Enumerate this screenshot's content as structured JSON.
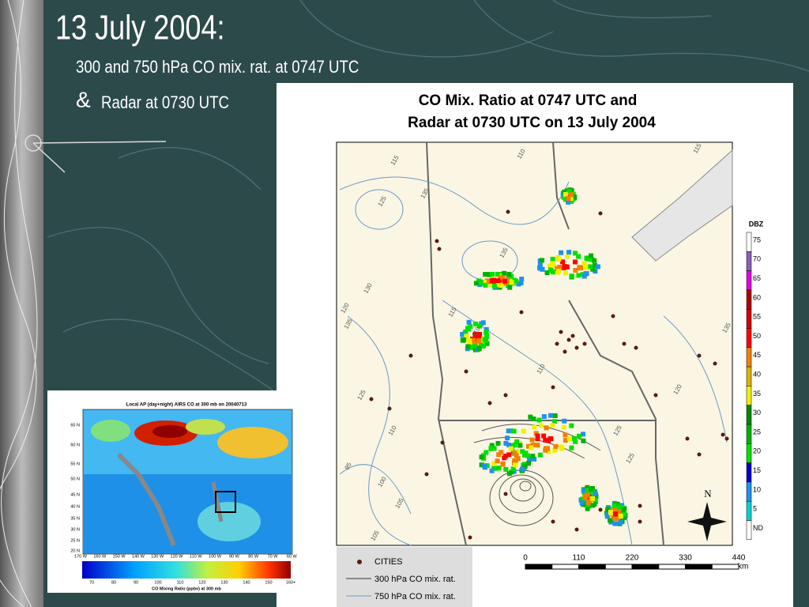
{
  "slide": {
    "title": "13 July 2004:",
    "subtitle": "300 and 750 hPa CO mix. rat. at 0747 UTC",
    "amp": "&",
    "subtitle2": "Radar at 0730 UTC"
  },
  "main_map": {
    "title_line1": "CO Mix. Ratio at 0747 UTC and",
    "title_line2": "Radar at 0730 UTC on 13 July 2004",
    "contour_labels": [
      "115",
      "125",
      "135",
      "110",
      "115",
      "130",
      "135",
      "120",
      "135",
      "115",
      "110",
      "120",
      "125",
      "110",
      "95",
      "100",
      "105",
      "125",
      "105",
      "110",
      "135",
      "125"
    ],
    "dbz_title": "DBZ",
    "dbz_labels": [
      75,
      70,
      65,
      60,
      55,
      50,
      45,
      40,
      35,
      30,
      25,
      20,
      15,
      10,
      5,
      "ND"
    ],
    "north": "N",
    "legend": [
      "CITIES",
      "300 hPa CO mix. rat.",
      "750 hPa CO mix. rat."
    ],
    "scale_labels": [
      0,
      110,
      220,
      330,
      440
    ],
    "scale_unit": "km"
  },
  "inset": {
    "title": "Local AP (day+night) AIRS CO at 300 mb on 20040713",
    "lat_labels": [
      "65 N",
      "60 N",
      "55 N",
      "50 N",
      "45 N",
      "40 N",
      "35 N",
      "30 N",
      "25 N",
      "20 N"
    ],
    "lon_labels": [
      "170 W",
      "160 W",
      "150 W",
      "140 W",
      "130 W",
      "120 W",
      "110 W",
      "100 W",
      "90 W",
      "80 W",
      "70 W",
      "60 W"
    ],
    "colorbar_labels": [
      70,
      80,
      90,
      100,
      110,
      120,
      130,
      140,
      150,
      "160+"
    ],
    "colorbar_title": "CO Mixing Ratio (ppbv) at 300 mb"
  }
}
